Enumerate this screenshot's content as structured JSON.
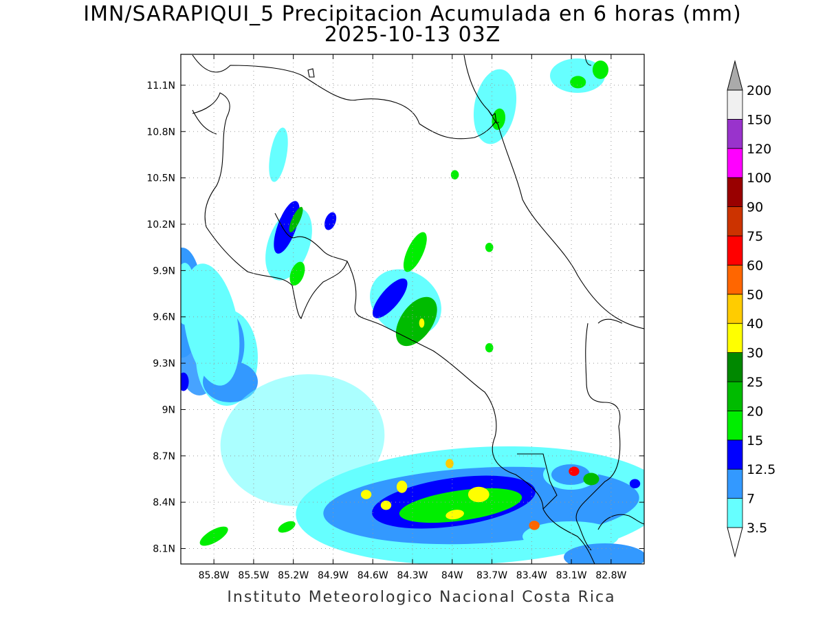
{
  "title": {
    "line1": "IMN/SARAPIQUI_5 Precipitacion Acumulada en 6 horas (mm)",
    "line2": "2025-10-13 03Z"
  },
  "credit": "Instituto Meteorologico Nacional Costa Rica",
  "map": {
    "lon_range": [
      -86.05,
      -82.55
    ],
    "lat_range": [
      8.0,
      11.3
    ],
    "lon_ticks": [
      {
        "value": -85.8,
        "label": "85.8W"
      },
      {
        "value": -85.5,
        "label": "85.5W"
      },
      {
        "value": -85.2,
        "label": "85.2W"
      },
      {
        "value": -84.9,
        "label": "84.9W"
      },
      {
        "value": -84.6,
        "label": "84.6W"
      },
      {
        "value": -84.3,
        "label": "84.3W"
      },
      {
        "value": -84.0,
        "label": "84W"
      },
      {
        "value": -83.7,
        "label": "83.7W"
      },
      {
        "value": -83.4,
        "label": "83.4W"
      },
      {
        "value": -83.1,
        "label": "83.1W"
      },
      {
        "value": -82.8,
        "label": "82.8W"
      }
    ],
    "lat_ticks": [
      {
        "value": 11.1,
        "label": "11.1N"
      },
      {
        "value": 10.8,
        "label": "10.8N"
      },
      {
        "value": 10.5,
        "label": "10.5N"
      },
      {
        "value": 10.2,
        "label": "10.2N"
      },
      {
        "value": 9.9,
        "label": "9.9N"
      },
      {
        "value": 9.6,
        "label": "9.6N"
      },
      {
        "value": 9.3,
        "label": "9.3N"
      },
      {
        "value": 9.0,
        "label": "9N"
      },
      {
        "value": 8.7,
        "label": "8.7N"
      },
      {
        "value": 8.4,
        "label": "8.4N"
      },
      {
        "value": 8.1,
        "label": "8.1N"
      }
    ],
    "grid": true
  },
  "legend": {
    "levels": [
      {
        "label": "3.5",
        "color": "#66ffff"
      },
      {
        "label": "7",
        "color": "#3399ff"
      },
      {
        "label": "12.5",
        "color": "#0000ff"
      },
      {
        "label": "15",
        "color": "#00ee00"
      },
      {
        "label": "20",
        "color": "#00bb00"
      },
      {
        "label": "25",
        "color": "#008800"
      },
      {
        "label": "30",
        "color": "#ffff00"
      },
      {
        "label": "40",
        "color": "#ffcc00"
      },
      {
        "label": "50",
        "color": "#ff6600"
      },
      {
        "label": "60",
        "color": "#ff0000"
      },
      {
        "label": "75",
        "color": "#cc3300"
      },
      {
        "label": "90",
        "color": "#990000"
      },
      {
        "label": "100",
        "color": "#ff00ff"
      },
      {
        "label": "120",
        "color": "#9933cc"
      },
      {
        "label": "150",
        "color": "#f0f0f0"
      },
      {
        "label": "200",
        "color": "#aaaaaa"
      }
    ]
  },
  "precip_cells": [
    {
      "lon": -85.72,
      "lat": 9.42,
      "rx": 0.15,
      "ry": 0.22,
      "rot": 0,
      "level": 7
    },
    {
      "lon": -85.82,
      "lat": 9.55,
      "rx": 0.2,
      "ry": 0.4,
      "rot": -10,
      "level": 3.5
    },
    {
      "lon": -86.02,
      "lat": 9.75,
      "rx": 0.08,
      "ry": 0.2,
      "rot": 0,
      "level": 3.5
    },
    {
      "lon": -86.03,
      "lat": 9.18,
      "rx": 0.04,
      "ry": 0.06,
      "rot": 0,
      "level": 12.5
    },
    {
      "lon": -85.25,
      "lat": 10.18,
      "rx": 0.07,
      "ry": 0.18,
      "rot": 20,
      "level": 12.5
    },
    {
      "lon": -85.18,
      "lat": 10.23,
      "rx": 0.03,
      "ry": 0.09,
      "rot": 25,
      "level": 20
    },
    {
      "lon": -85.17,
      "lat": 9.88,
      "rx": 0.05,
      "ry": 0.08,
      "rot": 20,
      "level": 15
    },
    {
      "lon": -84.92,
      "lat": 10.22,
      "rx": 0.04,
      "ry": 0.06,
      "rot": 20,
      "level": 12.5
    },
    {
      "lon": -84.28,
      "lat": 10.02,
      "rx": 0.06,
      "ry": 0.14,
      "rot": 25,
      "level": 15
    },
    {
      "lon": -84.47,
      "lat": 9.72,
      "rx": 0.07,
      "ry": 0.16,
      "rot": 40,
      "level": 12.5
    },
    {
      "lon": -84.27,
      "lat": 9.57,
      "rx": 0.12,
      "ry": 0.18,
      "rot": 35,
      "level": 20
    },
    {
      "lon": -84.23,
      "lat": 9.56,
      "rx": 0.02,
      "ry": 0.03,
      "rot": 0,
      "level": 30
    },
    {
      "lon": -83.98,
      "lat": 10.52,
      "rx": 0.03,
      "ry": 0.03,
      "rot": 0,
      "level": 15
    },
    {
      "lon": -83.72,
      "lat": 10.05,
      "rx": 0.03,
      "ry": 0.03,
      "rot": 0,
      "level": 15
    },
    {
      "lon": -83.72,
      "lat": 9.4,
      "rx": 0.03,
      "ry": 0.03,
      "rot": 0,
      "level": 15
    },
    {
      "lon": -83.65,
      "lat": 10.88,
      "rx": 0.05,
      "ry": 0.07,
      "rot": 10,
      "level": 15
    },
    {
      "lon": -83.05,
      "lat": 11.12,
      "rx": 0.06,
      "ry": 0.04,
      "rot": 0,
      "level": 15
    },
    {
      "lon": -82.88,
      "lat": 11.2,
      "rx": 0.06,
      "ry": 0.06,
      "rot": 0,
      "level": 15
    },
    {
      "lon": -84.02,
      "lat": 8.65,
      "rx": 0.03,
      "ry": 0.03,
      "rot": 0,
      "level": 40
    },
    {
      "lon": -83.8,
      "lat": 8.45,
      "rx": 0.08,
      "ry": 0.05,
      "rot": 0,
      "level": 30
    },
    {
      "lon": -83.98,
      "lat": 8.32,
      "rx": 0.07,
      "ry": 0.03,
      "rot": -10,
      "level": 30
    },
    {
      "lon": -84.5,
      "lat": 8.38,
      "rx": 0.04,
      "ry": 0.03,
      "rot": 0,
      "level": 30
    },
    {
      "lon": -84.38,
      "lat": 8.5,
      "rx": 0.04,
      "ry": 0.04,
      "rot": 0,
      "level": 30
    },
    {
      "lon": -84.65,
      "lat": 8.45,
      "rx": 0.04,
      "ry": 0.03,
      "rot": 0,
      "level": 30
    },
    {
      "lon": -83.38,
      "lat": 8.25,
      "rx": 0.04,
      "ry": 0.03,
      "rot": 0,
      "level": 50
    },
    {
      "lon": -83.08,
      "lat": 8.6,
      "rx": 0.04,
      "ry": 0.03,
      "rot": 0,
      "level": 60
    },
    {
      "lon": -82.95,
      "lat": 8.55,
      "rx": 0.06,
      "ry": 0.04,
      "rot": 0,
      "level": 20
    },
    {
      "lon": -85.25,
      "lat": 8.24,
      "rx": 0.07,
      "ry": 0.03,
      "rot": -25,
      "level": 15
    },
    {
      "lon": -85.8,
      "lat": 8.18,
      "rx": 0.12,
      "ry": 0.04,
      "rot": -30,
      "level": 15
    },
    {
      "lon": -82.62,
      "lat": 8.52,
      "rx": 0.04,
      "ry": 0.03,
      "rot": 0,
      "level": 12.5
    }
  ]
}
